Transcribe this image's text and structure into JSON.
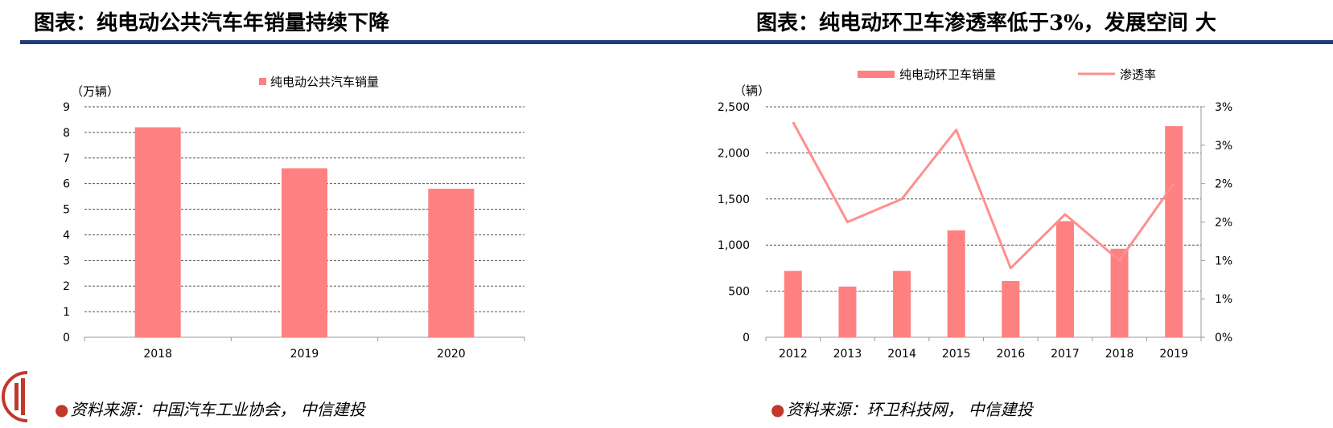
{
  "titles": {
    "left": "图表：纯电动公共汽车年销量持续下降",
    "right": "图表：纯电动环卫车渗透率低于3%，发展空间 大"
  },
  "sources": {
    "left": "资料来源：中国汽车工业协会，  中信建投",
    "right": "资料来源：环卫科技网，  中信建投"
  },
  "colors": {
    "bar": "#ff8080",
    "line": "#ff8f8f",
    "rule": "#1f3d7a",
    "brand": "#c0392b"
  },
  "chart_data": [
    {
      "type": "bar",
      "title": "",
      "unit_label": "（万辆）",
      "categories": [
        "2018",
        "2019",
        "2020"
      ],
      "series": [
        {
          "name": "纯电动公共汽车销量",
          "values": [
            8.2,
            6.6,
            5.8
          ]
        }
      ],
      "ylim": [
        0,
        9
      ],
      "yticks": [
        "0",
        "1",
        "2",
        "3",
        "4",
        "5",
        "6",
        "7",
        "8",
        "9"
      ],
      "grid": true,
      "legend": "top-center"
    },
    {
      "type": "bar+line",
      "title": "",
      "unit_label": "（辆）",
      "categories": [
        "2012",
        "2013",
        "2014",
        "2015",
        "2016",
        "2017",
        "2018",
        "2019"
      ],
      "series": [
        {
          "name": "纯电动环卫车销量",
          "type": "bar",
          "axis": "left",
          "values": [
            720,
            550,
            720,
            1160,
            610,
            1260,
            960,
            2290
          ]
        },
        {
          "name": "渗透率",
          "type": "line",
          "axis": "right",
          "values": [
            2.8,
            1.5,
            1.8,
            2.7,
            0.9,
            1.6,
            1.0,
            2.0
          ]
        }
      ],
      "ylim": [
        0,
        2500
      ],
      "yticks": [
        "0",
        "500",
        "1,000",
        "1,500",
        "2,000",
        "2,500"
      ],
      "y2lim": [
        0,
        3
      ],
      "y2ticks": [
        "0%",
        "1%",
        "1%",
        "2%",
        "2%",
        "3%",
        "3%"
      ],
      "grid": true,
      "legend": "top"
    }
  ]
}
